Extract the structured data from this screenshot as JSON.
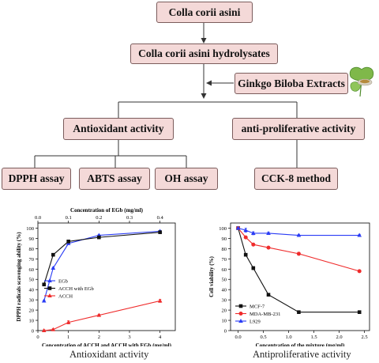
{
  "flowchart": {
    "boxes": {
      "colla": "Colla corii asini",
      "hydrolysates": "Colla corii asini hydrolysates",
      "ginkgo": "Ginkgo Biloba Extracts",
      "antioxidant": "Antioxidant activity",
      "antiproliferative": "anti-proliferative activity",
      "dpph": "DPPH assay",
      "abts": "ABTS assay",
      "oh": "OH assay",
      "cck8": "CCK-8 method"
    },
    "colors": {
      "box_fill": "#f4d9d8",
      "box_border": "#7b5c5c",
      "arrow": "#333333"
    }
  },
  "captions": {
    "left": "Antioxidant activity",
    "right": "Antiproliferative activity"
  },
  "chart_data": [
    {
      "type": "line",
      "xlabel": "Concentration of ACCH and ACCH with EGb (mg/ml)",
      "x2label": "Concentration of EGb (mg/ml)",
      "ylabel": "DPPH radicals scavenging ability (%)",
      "xlim": [
        0,
        4.5
      ],
      "x2lim": [
        0,
        0.45
      ],
      "ylim": [
        0,
        105
      ],
      "x_ticks": [
        0,
        1,
        2,
        3,
        4
      ],
      "x2_ticks": [
        0.0,
        0.1,
        0.2,
        0.3,
        0.4
      ],
      "y_ticks": [
        0,
        10,
        20,
        30,
        40,
        50,
        60,
        70,
        80,
        90,
        100
      ],
      "legend_position": "center-left",
      "series": [
        {
          "name": "EGb",
          "color": "#2a3cf5",
          "marker": "triangle",
          "x": [
            0.2,
            0.5,
            1.0,
            2.0,
            4.0
          ],
          "y": [
            29,
            61,
            85,
            93,
            97
          ],
          "err": [
            0.8,
            0.8,
            0.8,
            0.8,
            0.8
          ]
        },
        {
          "name": "ACCH with EGb",
          "color": "#111111",
          "marker": "square",
          "x": [
            0.2,
            0.5,
            1.0,
            2.0,
            4.0
          ],
          "y": [
            45,
            74,
            87,
            91,
            96
          ],
          "err": [
            0.8,
            0.8,
            0.8,
            0.8,
            0.8
          ]
        },
        {
          "name": "ACCH",
          "color": "#ef2b2b",
          "marker": "triangle",
          "x": [
            0.2,
            0.5,
            1.0,
            2.0,
            4.0
          ],
          "y": [
            0,
            1,
            8,
            15,
            29
          ],
          "err": [
            0.8,
            0.8,
            1.5,
            1.0,
            1.5
          ]
        }
      ]
    },
    {
      "type": "line",
      "xlabel": "Concentration of the mixture (mg/ml)",
      "ylabel": "Cell viability (%)",
      "xlim": [
        -0.15,
        2.6
      ],
      "ylim": [
        0,
        105
      ],
      "x_ticks": [
        0.0,
        0.5,
        1.0,
        1.5,
        2.0,
        2.5
      ],
      "y_ticks": [
        0,
        10,
        20,
        30,
        40,
        50,
        60,
        70,
        80,
        90,
        100
      ],
      "legend_position": "bottom-left",
      "series": [
        {
          "name": "MCF-7",
          "color": "#111111",
          "marker": "square",
          "x": [
            0,
            0.15,
            0.3,
            0.6,
            1.2,
            2.4
          ],
          "y": [
            100,
            74,
            61,
            35,
            18,
            18
          ],
          "err": [
            0.5,
            1,
            1.5,
            1,
            1,
            1
          ]
        },
        {
          "name": "MDA-MB-231",
          "color": "#ef2b2b",
          "marker": "circle",
          "x": [
            0,
            0.15,
            0.3,
            0.6,
            1.2,
            2.4
          ],
          "y": [
            100,
            91,
            84,
            81,
            75,
            58
          ],
          "err": [
            0.5,
            1,
            1,
            1,
            1.5,
            1
          ]
        },
        {
          "name": "L929",
          "color": "#2a3cf5",
          "marker": "triangle",
          "x": [
            0,
            0.15,
            0.3,
            0.6,
            1.2,
            2.4
          ],
          "y": [
            100,
            98,
            95,
            95,
            93,
            93
          ],
          "err": [
            0.5,
            2,
            1.5,
            1,
            1,
            1
          ]
        }
      ]
    }
  ]
}
